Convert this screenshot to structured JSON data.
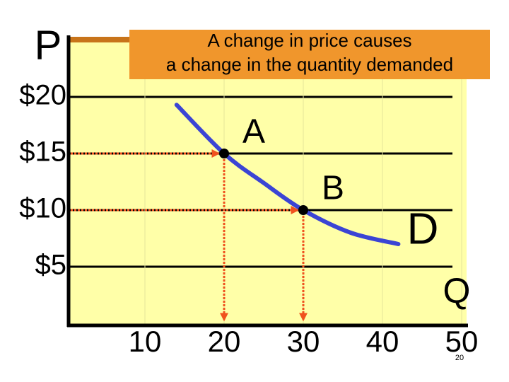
{
  "chart_data": {
    "type": "line",
    "title": "A change in price causes a change in the quantity demanded",
    "y_label": "P",
    "x_label": "Q",
    "curve_label": "D",
    "page_number": "20",
    "x": [
      14,
      20,
      25,
      30,
      36,
      42
    ],
    "values": [
      19.3,
      15,
      12.4,
      10,
      8,
      7
    ],
    "color": "#3b44d4",
    "points": [
      {
        "label": "A",
        "x": 20,
        "y": 15
      },
      {
        "label": "B",
        "x": 30,
        "y": 10
      }
    ],
    "arrow_color": "#f0521e",
    "xlim": [
      0,
      50.5
    ],
    "ylim": [
      0,
      25
    ],
    "xticks": [
      10,
      20,
      30,
      40,
      50
    ],
    "yticks": [
      {
        "value": 20,
        "label": "$20"
      },
      {
        "value": 15,
        "label": "$15"
      },
      {
        "value": 10,
        "label": "$10"
      },
      {
        "value": 5,
        "label": "$5"
      }
    ],
    "grid": true
  }
}
